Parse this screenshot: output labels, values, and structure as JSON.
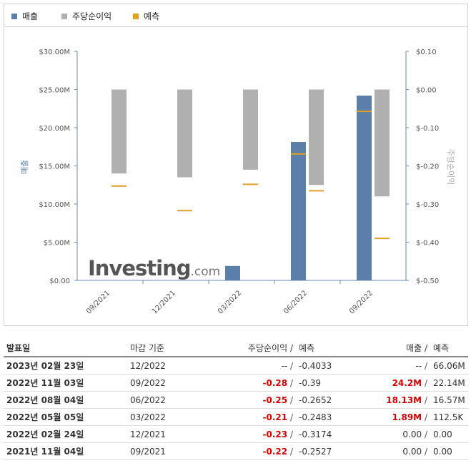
{
  "legend": [
    {
      "label": "매출",
      "color": "#5b7fa8"
    },
    {
      "label": "주당순이익",
      "color": "#b0b0b0"
    },
    {
      "label": "예측",
      "color": "#e0a020"
    }
  ],
  "chart_data": {
    "type": "bar",
    "categories": [
      "09/2021",
      "12/2021",
      "03/2022",
      "06/2022",
      "09/2022"
    ],
    "left_axis": {
      "label": "매출",
      "ticks": [
        "$30.00M",
        "$25.00M",
        "$20.00M",
        "$15.00M",
        "$10.00M",
        "$5.00M",
        "$0.00"
      ],
      "range": [
        0,
        30
      ]
    },
    "right_axis": {
      "label": "주당순이익",
      "ticks": [
        "$0.10",
        "$0.00",
        "$-0.10",
        "$-0.20",
        "$-0.30",
        "$-0.40",
        "$-0.50"
      ],
      "range": [
        -0.5,
        0.1
      ]
    },
    "series": [
      {
        "name": "매출",
        "axis": "left",
        "values": [
          0,
          0,
          1.89,
          18.13,
          24.2
        ],
        "color": "#5b7fa8"
      },
      {
        "name": "주당순이익",
        "axis": "right",
        "values": [
          -0.22,
          -0.23,
          -0.21,
          -0.25,
          -0.28
        ],
        "color": "#b0b0b0"
      }
    ],
    "forecasts": [
      {
        "name": "예측",
        "axis": "right",
        "values": [
          -0.2527,
          -0.3174,
          -0.2483,
          -0.2652,
          -0.39
        ]
      },
      {
        "name": "예측",
        "axis": "left",
        "values": [
          0,
          0,
          0.1125,
          16.57,
          22.14
        ]
      }
    ]
  },
  "logo": {
    "main": "Investing",
    "suffix": ".com"
  },
  "table": {
    "headers": {
      "date": "발표일",
      "period": "마감 기준",
      "eps": "주당순이익",
      "eps_sep": "/",
      "eps_fc": "예측",
      "rev": "매출",
      "rev_sep": "/",
      "rev_fc": "예측"
    },
    "rows": [
      {
        "date": "2023년 02월 23일",
        "period": "12/2022",
        "eps": "--",
        "eps_fc": "-0.4033",
        "rev": "--",
        "rev_fc": "66.06M",
        "eps_neg": false,
        "rev_red": false
      },
      {
        "date": "2022년 11월 03일",
        "period": "09/2022",
        "eps": "-0.28",
        "eps_fc": "-0.39",
        "rev": "24.2M",
        "rev_fc": "22.14M",
        "eps_neg": true,
        "rev_red": true
      },
      {
        "date": "2022년 08월 04일",
        "period": "06/2022",
        "eps": "-0.25",
        "eps_fc": "-0.2652",
        "rev": "18.13M",
        "rev_fc": "16.57M",
        "eps_neg": true,
        "rev_red": true
      },
      {
        "date": "2022년 05월 05일",
        "period": "03/2022",
        "eps": "-0.21",
        "eps_fc": "-0.2483",
        "rev": "1.89M",
        "rev_fc": "112.5K",
        "eps_neg": true,
        "rev_red": true
      },
      {
        "date": "2022년 02월 24일",
        "period": "12/2021",
        "eps": "-0.23",
        "eps_fc": "-0.3174",
        "rev": "0.00",
        "rev_fc": "0.00",
        "eps_neg": true,
        "rev_red": false
      },
      {
        "date": "2021년 11월 04일",
        "period": "09/2021",
        "eps": "-0.22",
        "eps_fc": "-0.2527",
        "rev": "0.00",
        "rev_fc": "0.00",
        "eps_neg": true,
        "rev_red": false
      }
    ]
  }
}
